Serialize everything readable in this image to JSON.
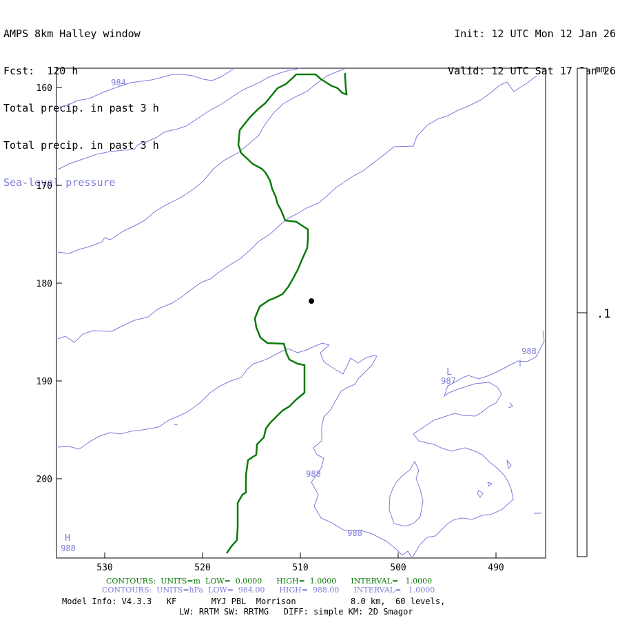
{
  "header": {
    "model_title": "AMPS 8km Halley window",
    "forecast": "Fcst:  120 h",
    "field1": "Total precip. in past 3 h",
    "field2": "Total precip. in past 3 h",
    "field3": "Sea-level pressure",
    "init": "Init: 12 UTC Mon 12 Jan 26",
    "valid": "Valid: 12 UTC Sat 17 Jan 26"
  },
  "axes": {
    "x_ticks": [
      "530",
      "520",
      "510",
      "500",
      "490"
    ],
    "y_ticks": [
      "160",
      "170",
      "180",
      "190",
      "200"
    ]
  },
  "colorbar": {
    "unit": "mm",
    "label": ".1"
  },
  "contour_labels": {
    "c984": "984",
    "c987": "987",
    "c988a": "988",
    "c988b": "988",
    "c988c": "988",
    "c988d": "988",
    "low": "L",
    "high": "H"
  },
  "footer": {
    "green_prefix": "CONTOURS:  UNITS=m  LOW=  0.0000",
    "green_high": "HIGH=  1.0000",
    "green_interval": "INTERVAL=   1.0000",
    "blue_prefix": "CONTOURS:  UNITS=hPa  LOW=  984.00",
    "blue_high": "HIGH=  988.00",
    "blue_interval": "INTERVAL=   1.0000",
    "model_info": "Model Info: V4.3.3   KF       MYJ PBL  Morrison           8.0 km,  60 levels,",
    "model_info2": "LW: RRTM SW: RRTMG   DIFF: simple KM: 2D Smagor"
  },
  "colors": {
    "green": "#0a7a0a",
    "pressure": "#7b7bdb",
    "station": "#000000"
  }
}
